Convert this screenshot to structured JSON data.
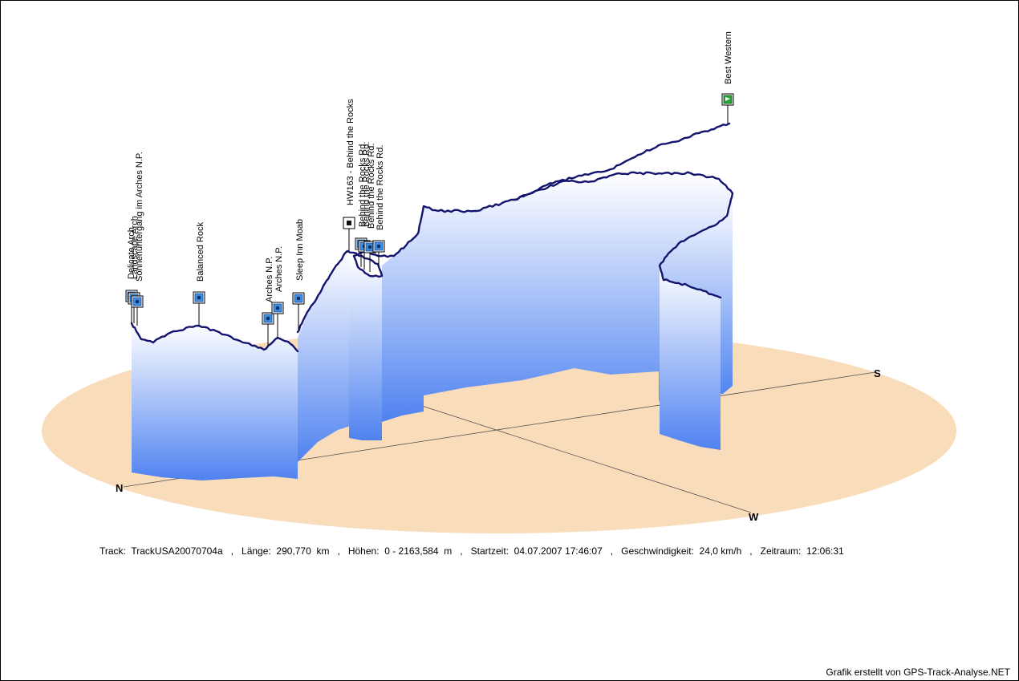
{
  "chart_data": {
    "type": "3d-elevation-track",
    "compass": {
      "north": "N",
      "south": "S",
      "west": "W"
    },
    "waypoints": [
      {
        "name": "Delicate Arch",
        "icon": "photo"
      },
      {
        "name": "Landscape Arch",
        "icon": "photo"
      },
      {
        "name": "Sonnenuntergang im Arches N.P.",
        "icon": "photo"
      },
      {
        "name": "Balanced Rock",
        "icon": "photo"
      },
      {
        "name": "Arches N.P.",
        "icon": "photo"
      },
      {
        "name": "Arches N.P.",
        "icon": "photo"
      },
      {
        "name": "Sleep Inn Moab",
        "icon": "photo"
      },
      {
        "name": "HW163 - Behind the Rocks",
        "icon": "marker"
      },
      {
        "name": "Behind the Rocks Rd.",
        "icon": "photo"
      },
      {
        "name": "Behind the Rocks Rd.",
        "icon": "photo"
      },
      {
        "name": "Behind the Rocks Rd.",
        "icon": "photo"
      },
      {
        "name": "Behind the Rocks Rd.",
        "icon": "photo"
      },
      {
        "name": "Best Western",
        "icon": "flag"
      }
    ],
    "colors": {
      "ground": "#f9dcba",
      "track": "#14146e",
      "curtain_top": "#ffffff",
      "curtain_bottom": "#4f82f0"
    }
  },
  "info": {
    "track_label": "Track:",
    "track_value": "TrackUSA20070704a",
    "length_label": "Länge:",
    "length_value": "290,770",
    "length_unit": "km",
    "elev_label": "Höhen:",
    "elev_value": "0 - 2163,584",
    "elev_unit": "m",
    "start_label": "Startzeit:",
    "start_value": "04.07.2007 17:46:07",
    "speed_label": "Geschwindigkeit:",
    "speed_value": "24,0 km/h",
    "period_label": "Zeitraum:",
    "period_value": "12:06:31",
    "separator": ","
  },
  "credit": "Grafik erstellt von GPS-Track-Analyse.NET"
}
